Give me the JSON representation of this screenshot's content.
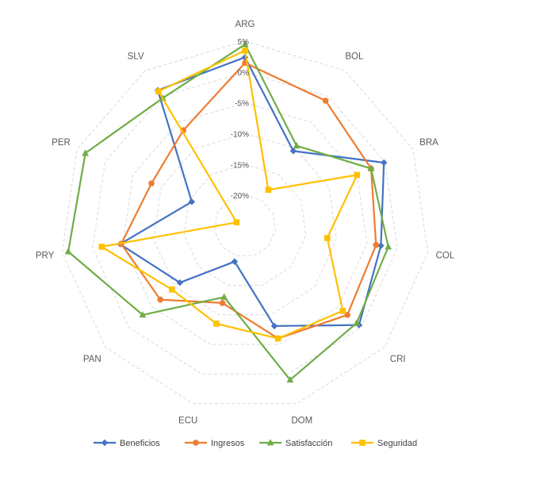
{
  "chart_data": {
    "type": "radar",
    "categories": [
      "ARG",
      "BOL",
      "BRA",
      "COL",
      "CRI",
      "DOM",
      "ECU",
      "PAN",
      "PRY",
      "PER",
      "SLV"
    ],
    "tick_labels": [
      "5%",
      "0%",
      "-5%",
      "-10%",
      "-15%",
      "-20%"
    ],
    "ylim": [
      -25,
      5
    ],
    "grid": true,
    "legend_position": "bottom",
    "series": [
      {
        "name": "Beneficios",
        "color": "#4472c4",
        "marker": "diamond",
        "values": [
          2.4,
          -10.5,
          -0.2,
          -2.7,
          -0.5,
          -8.1,
          -19.0,
          -11.0,
          -4.5,
          -15.5,
          1.2
        ]
      },
      {
        "name": "Ingresos",
        "color": "#ed7d31",
        "marker": "circle",
        "values": [
          1.5,
          -0.8,
          -2.5,
          -3.5,
          -3.0,
          -6.0,
          -12.0,
          -6.8,
          -4.7,
          -8.3,
          -6.5
        ]
      },
      {
        "name": "Satisfacción",
        "color": "#70ad47",
        "marker": "triangle",
        "values": [
          4.5,
          -9.5,
          -2.5,
          -1.5,
          -1.0,
          1.0,
          -13.0,
          -3.0,
          4.0,
          3.5,
          -0.3
        ]
      },
      {
        "name": "Seguridad",
        "color": "#ffc000",
        "marker": "square",
        "values": [
          3.5,
          -18.0,
          -5.0,
          -11.5,
          -4.0,
          -6.0,
          -8.5,
          -9.3,
          -1.5,
          -23.5,
          1.0
        ]
      }
    ]
  }
}
